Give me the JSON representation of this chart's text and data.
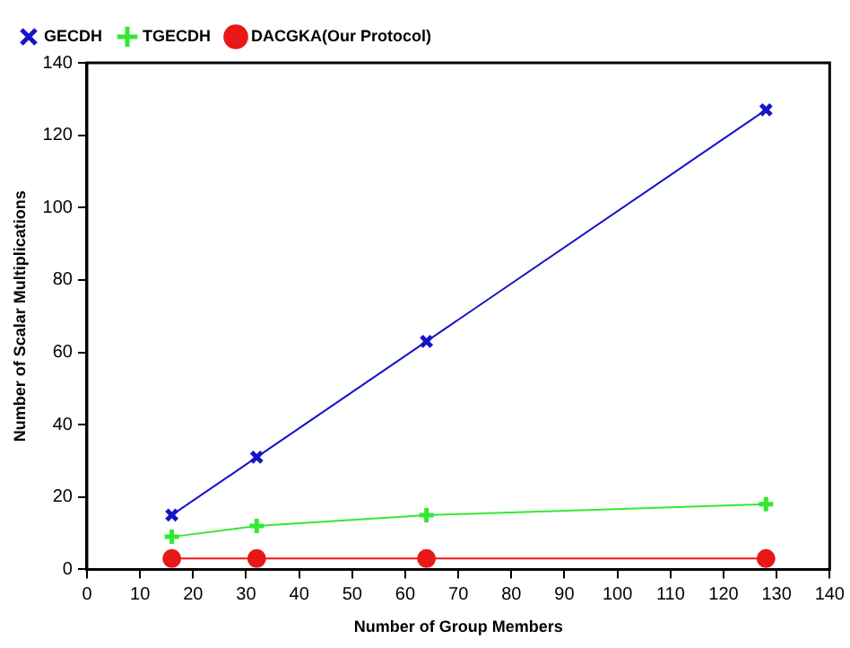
{
  "chart_data": {
    "type": "line",
    "xlabel": "Number of Group Members",
    "ylabel": "Number of Scalar Multiplications",
    "xlim": [
      0,
      140
    ],
    "xticks": [
      0,
      10,
      20,
      30,
      40,
      50,
      60,
      70,
      80,
      90,
      100,
      110,
      120,
      130,
      140
    ],
    "ylim": [
      0,
      140
    ],
    "yticks": [
      0,
      20,
      40,
      60,
      80,
      100,
      120,
      140
    ],
    "grid": false,
    "legend": "top left",
    "series": [
      {
        "name": "GECDH",
        "color": "#1515c8",
        "marker": "x",
        "x": [
          16,
          32,
          64,
          128
        ],
        "values": [
          15,
          31,
          63,
          127
        ]
      },
      {
        "name": "TGECDH",
        "color": "#33e833",
        "marker": "cross",
        "x": [
          16,
          32,
          64,
          128
        ],
        "values": [
          9,
          12,
          15,
          18
        ]
      },
      {
        "name": "DACGKA(Our Protocol)",
        "color": "#e81818",
        "marker": "circle",
        "x": [
          16,
          32,
          64,
          128
        ],
        "values": [
          3,
          3,
          3,
          3
        ]
      }
    ]
  }
}
